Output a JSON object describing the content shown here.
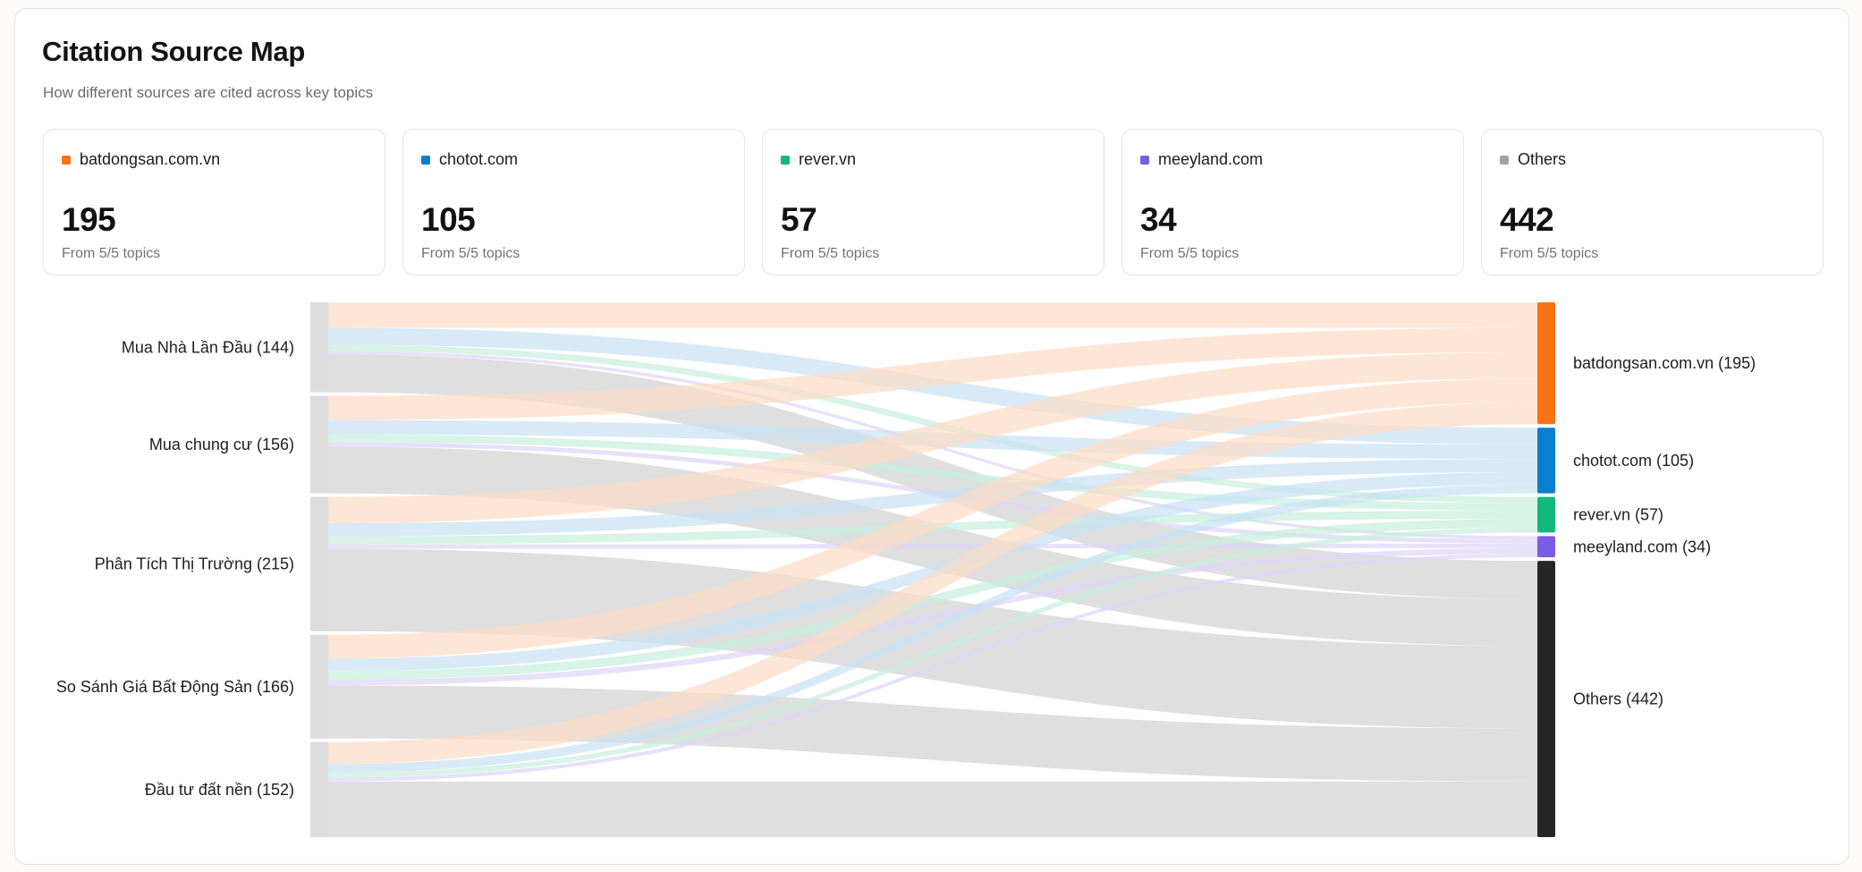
{
  "header": {
    "title": "Citation Source Map",
    "subtitle": "How different sources are cited across key topics"
  },
  "cards": [
    {
      "name": "batdongsan.com.vn",
      "value": "195",
      "sub": "From 5/5 topics",
      "color": "#f97316"
    },
    {
      "name": "chotot.com",
      "value": "105",
      "sub": "From 5/5 topics",
      "color": "#0b7fcf"
    },
    {
      "name": "rever.vn",
      "value": "57",
      "sub": "From 5/5 topics",
      "color": "#14b87c"
    },
    {
      "name": "meeyland.com",
      "value": "34",
      "sub": "From 5/5 topics",
      "color": "#7b5ce6"
    },
    {
      "name": "Others",
      "value": "442",
      "sub": "From 5/5 topics",
      "color": "#a3a3a3"
    }
  ],
  "chart_data": {
    "type": "sankey",
    "title": "Citation Source Map",
    "sources": [
      {
        "name": "Mua Nhà Lần Đầu",
        "label": "Mua Nhà Lần Đầu (144)",
        "total": 144
      },
      {
        "name": "Mua chung cư",
        "label": "Mua chung cư (156)",
        "total": 156
      },
      {
        "name": "Phân Tích Thị Trường",
        "label": "Phân Tích Thị Trường (215)",
        "total": 215
      },
      {
        "name": "So Sánh Giá Bất Động Sản",
        "label": "So Sánh Giá Bất Động Sản (166)",
        "total": 166
      },
      {
        "name": "Đầu tư đất nền",
        "label": "Đầu tư đất nền (152)",
        "total": 152
      }
    ],
    "targets": [
      {
        "name": "batdongsan.com.vn",
        "label": "batdongsan.com.vn (195)",
        "total": 195,
        "color": "#f97316",
        "link_color": "#fcdcc4"
      },
      {
        "name": "chotot.com",
        "label": "chotot.com (105)",
        "total": 105,
        "color": "#0b7fcf",
        "link_color": "#c9e1f3"
      },
      {
        "name": "rever.vn",
        "label": "rever.vn (57)",
        "total": 57,
        "color": "#14b87c",
        "link_color": "#c8eedd"
      },
      {
        "name": "meeyland.com",
        "label": "meeyland.com (34)",
        "total": 34,
        "color": "#7b5ce6",
        "link_color": "#ddd4f8"
      },
      {
        "name": "Others",
        "label": "Others (442)",
        "total": 442,
        "color": "#262626",
        "link_color": "#d9d9d9"
      }
    ],
    "links": [
      {
        "source": 0,
        "target": 0,
        "value": 41
      },
      {
        "source": 0,
        "target": 1,
        "value": 27
      },
      {
        "source": 0,
        "target": 2,
        "value": 10
      },
      {
        "source": 0,
        "target": 3,
        "value": 5
      },
      {
        "source": 0,
        "target": 4,
        "value": 61
      },
      {
        "source": 1,
        "target": 0,
        "value": 39
      },
      {
        "source": 1,
        "target": 1,
        "value": 23
      },
      {
        "source": 1,
        "target": 2,
        "value": 12
      },
      {
        "source": 1,
        "target": 3,
        "value": 7
      },
      {
        "source": 1,
        "target": 4,
        "value": 75
      },
      {
        "source": 2,
        "target": 0,
        "value": 42
      },
      {
        "source": 2,
        "target": 1,
        "value": 21
      },
      {
        "source": 2,
        "target": 2,
        "value": 13
      },
      {
        "source": 2,
        "target": 3,
        "value": 7
      },
      {
        "source": 2,
        "target": 4,
        "value": 132
      },
      {
        "source": 3,
        "target": 0,
        "value": 38
      },
      {
        "source": 3,
        "target": 1,
        "value": 20
      },
      {
        "source": 3,
        "target": 2,
        "value": 14
      },
      {
        "source": 3,
        "target": 3,
        "value": 9
      },
      {
        "source": 3,
        "target": 4,
        "value": 85
      },
      {
        "source": 4,
        "target": 0,
        "value": 35
      },
      {
        "source": 4,
        "target": 1,
        "value": 14
      },
      {
        "source": 4,
        "target": 2,
        "value": 8
      },
      {
        "source": 4,
        "target": 3,
        "value": 6
      },
      {
        "source": 4,
        "target": 4,
        "value": 89
      }
    ]
  }
}
